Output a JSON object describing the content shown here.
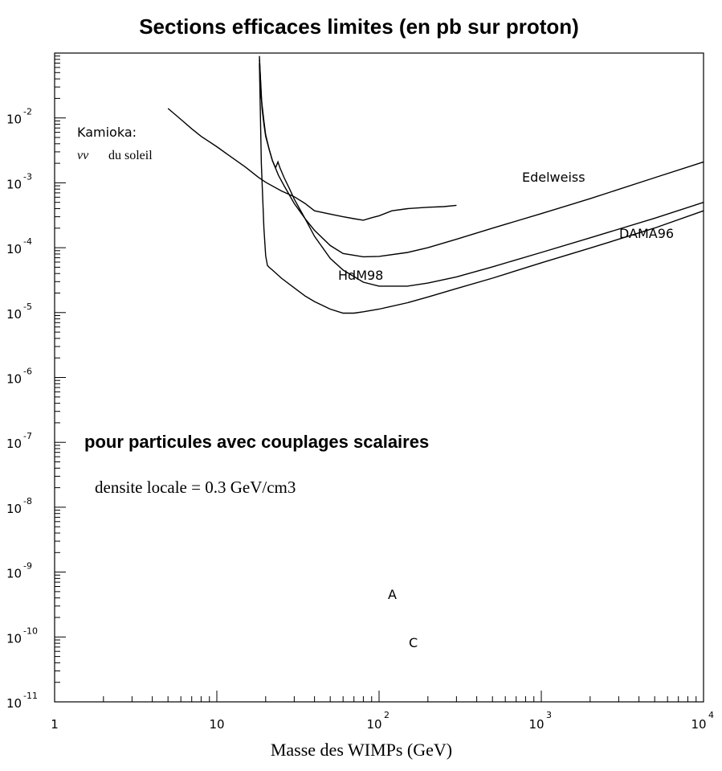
{
  "chart_data": {
    "type": "line",
    "title": "Sections efficaces limites (en pb sur proton)",
    "xlabel": "Masse des WIMPs (GeV)",
    "ylabel": "",
    "x_scale": "log",
    "y_scale": "log",
    "xlim": [
      1,
      10000
    ],
    "ylim": [
      1e-11,
      0.1
    ],
    "x_ticks": [
      {
        "base": "1",
        "exp": ""
      },
      {
        "base": "10",
        "exp": ""
      },
      {
        "base": "10",
        "exp": "2"
      },
      {
        "base": "10",
        "exp": "3"
      },
      {
        "base": "10",
        "exp": "4"
      }
    ],
    "y_ticks": [
      {
        "base": "10",
        "exp": "-2"
      },
      {
        "base": "10",
        "exp": "-3"
      },
      {
        "base": "10",
        "exp": "-4"
      },
      {
        "base": "10",
        "exp": "-5"
      },
      {
        "base": "10",
        "exp": "-6"
      },
      {
        "base": "10",
        "exp": "-7"
      },
      {
        "base": "10",
        "exp": "-8"
      },
      {
        "base": "10",
        "exp": "-9"
      },
      {
        "base": "10",
        "exp": "-10"
      },
      {
        "base": "10",
        "exp": "-11"
      }
    ],
    "grid": false,
    "series": [
      {
        "name": "Kamioka",
        "x": [
          5,
          6,
          7,
          8,
          10,
          12,
          15,
          18,
          20,
          25,
          30,
          35,
          40,
          50,
          60,
          70,
          80,
          90,
          100,
          120,
          150,
          200,
          250,
          300
        ],
        "y": [
          0.014,
          0.0095,
          0.0068,
          0.0052,
          0.0036,
          0.0026,
          0.00175,
          0.00122,
          0.00102,
          0.00075,
          0.00061,
          0.00048,
          0.00037,
          0.00033,
          0.0003,
          0.00028,
          0.000265,
          0.00029,
          0.00031,
          0.00037,
          0.0004,
          0.00042,
          0.00043,
          0.00045
        ]
      },
      {
        "name": "Edelweiss",
        "x": [
          18.3,
          18.7,
          19,
          19.5,
          20,
          21,
          22,
          24,
          26,
          30,
          35,
          40,
          50,
          60,
          80,
          100,
          150,
          200,
          300,
          500,
          1000,
          2000,
          5000,
          10000
        ],
        "y": [
          0.08,
          0.03,
          0.014,
          0.008,
          0.0052,
          0.0033,
          0.0022,
          0.0013,
          0.0009,
          0.00048,
          0.00028,
          0.000185,
          0.000108,
          8.15e-05,
          7.25e-05,
          7.35e-05,
          8.45e-05,
          0.0001,
          0.000135,
          0.0002,
          0.000335,
          0.00057,
          0.0012,
          0.0021
        ]
      },
      {
        "name": "HdM98",
        "x": [
          18.3,
          18.8,
          19.5,
          20,
          21,
          22,
          23,
          23.8,
          24.5,
          26,
          28,
          30,
          35,
          40,
          50,
          60,
          80,
          100,
          150,
          200,
          300,
          500,
          1000,
          2000,
          5000,
          10000
        ],
        "y": [
          0.09,
          0.02,
          0.009,
          0.0055,
          0.0033,
          0.0022,
          0.0017,
          0.0021,
          0.0017,
          0.0012,
          0.00082,
          0.00056,
          0.00028,
          0.00015,
          6.85e-05,
          4.52e-05,
          2.94e-05,
          2.56e-05,
          2.56e-05,
          2.85e-05,
          3.55e-05,
          5.07e-05,
          8.45e-05,
          0.000142,
          0.000285,
          0.0005
        ]
      },
      {
        "name": "DAMA96",
        "x": [
          18.3,
          18.8,
          19.5,
          20,
          20.5,
          21,
          22,
          25,
          30,
          35,
          40,
          50,
          60,
          70,
          80,
          100,
          150,
          200,
          300,
          500,
          1000,
          2000,
          5000,
          10000
        ],
        "y": [
          0.07,
          0.002,
          0.0002,
          7.52e-05,
          5.33e-05,
          5e-05,
          4.52e-05,
          3.39e-05,
          2.4e-05,
          1.8e-05,
          1.48e-05,
          1.13e-05,
          9.8e-06,
          9.8e-06,
          1.03e-05,
          1.13e-05,
          1.42e-05,
          1.74e-05,
          2.35e-05,
          3.39e-05,
          5.85e-05,
          9.87e-05,
          0.000201,
          0.00037
        ]
      }
    ],
    "labels": {
      "kamioka_line1": "Kamioka:",
      "kamioka_nu": "νν",
      "kamioka_sun": "du soleil",
      "edelweiss": "Edelweiss",
      "dama96": "DAMA96",
      "hdm98": "HdM98",
      "scalar_note": "pour particules avec couplages scalaires",
      "density_note": "densite locale = 0.3 GeV/cm3",
      "point_a": "A",
      "point_c": "C"
    }
  }
}
